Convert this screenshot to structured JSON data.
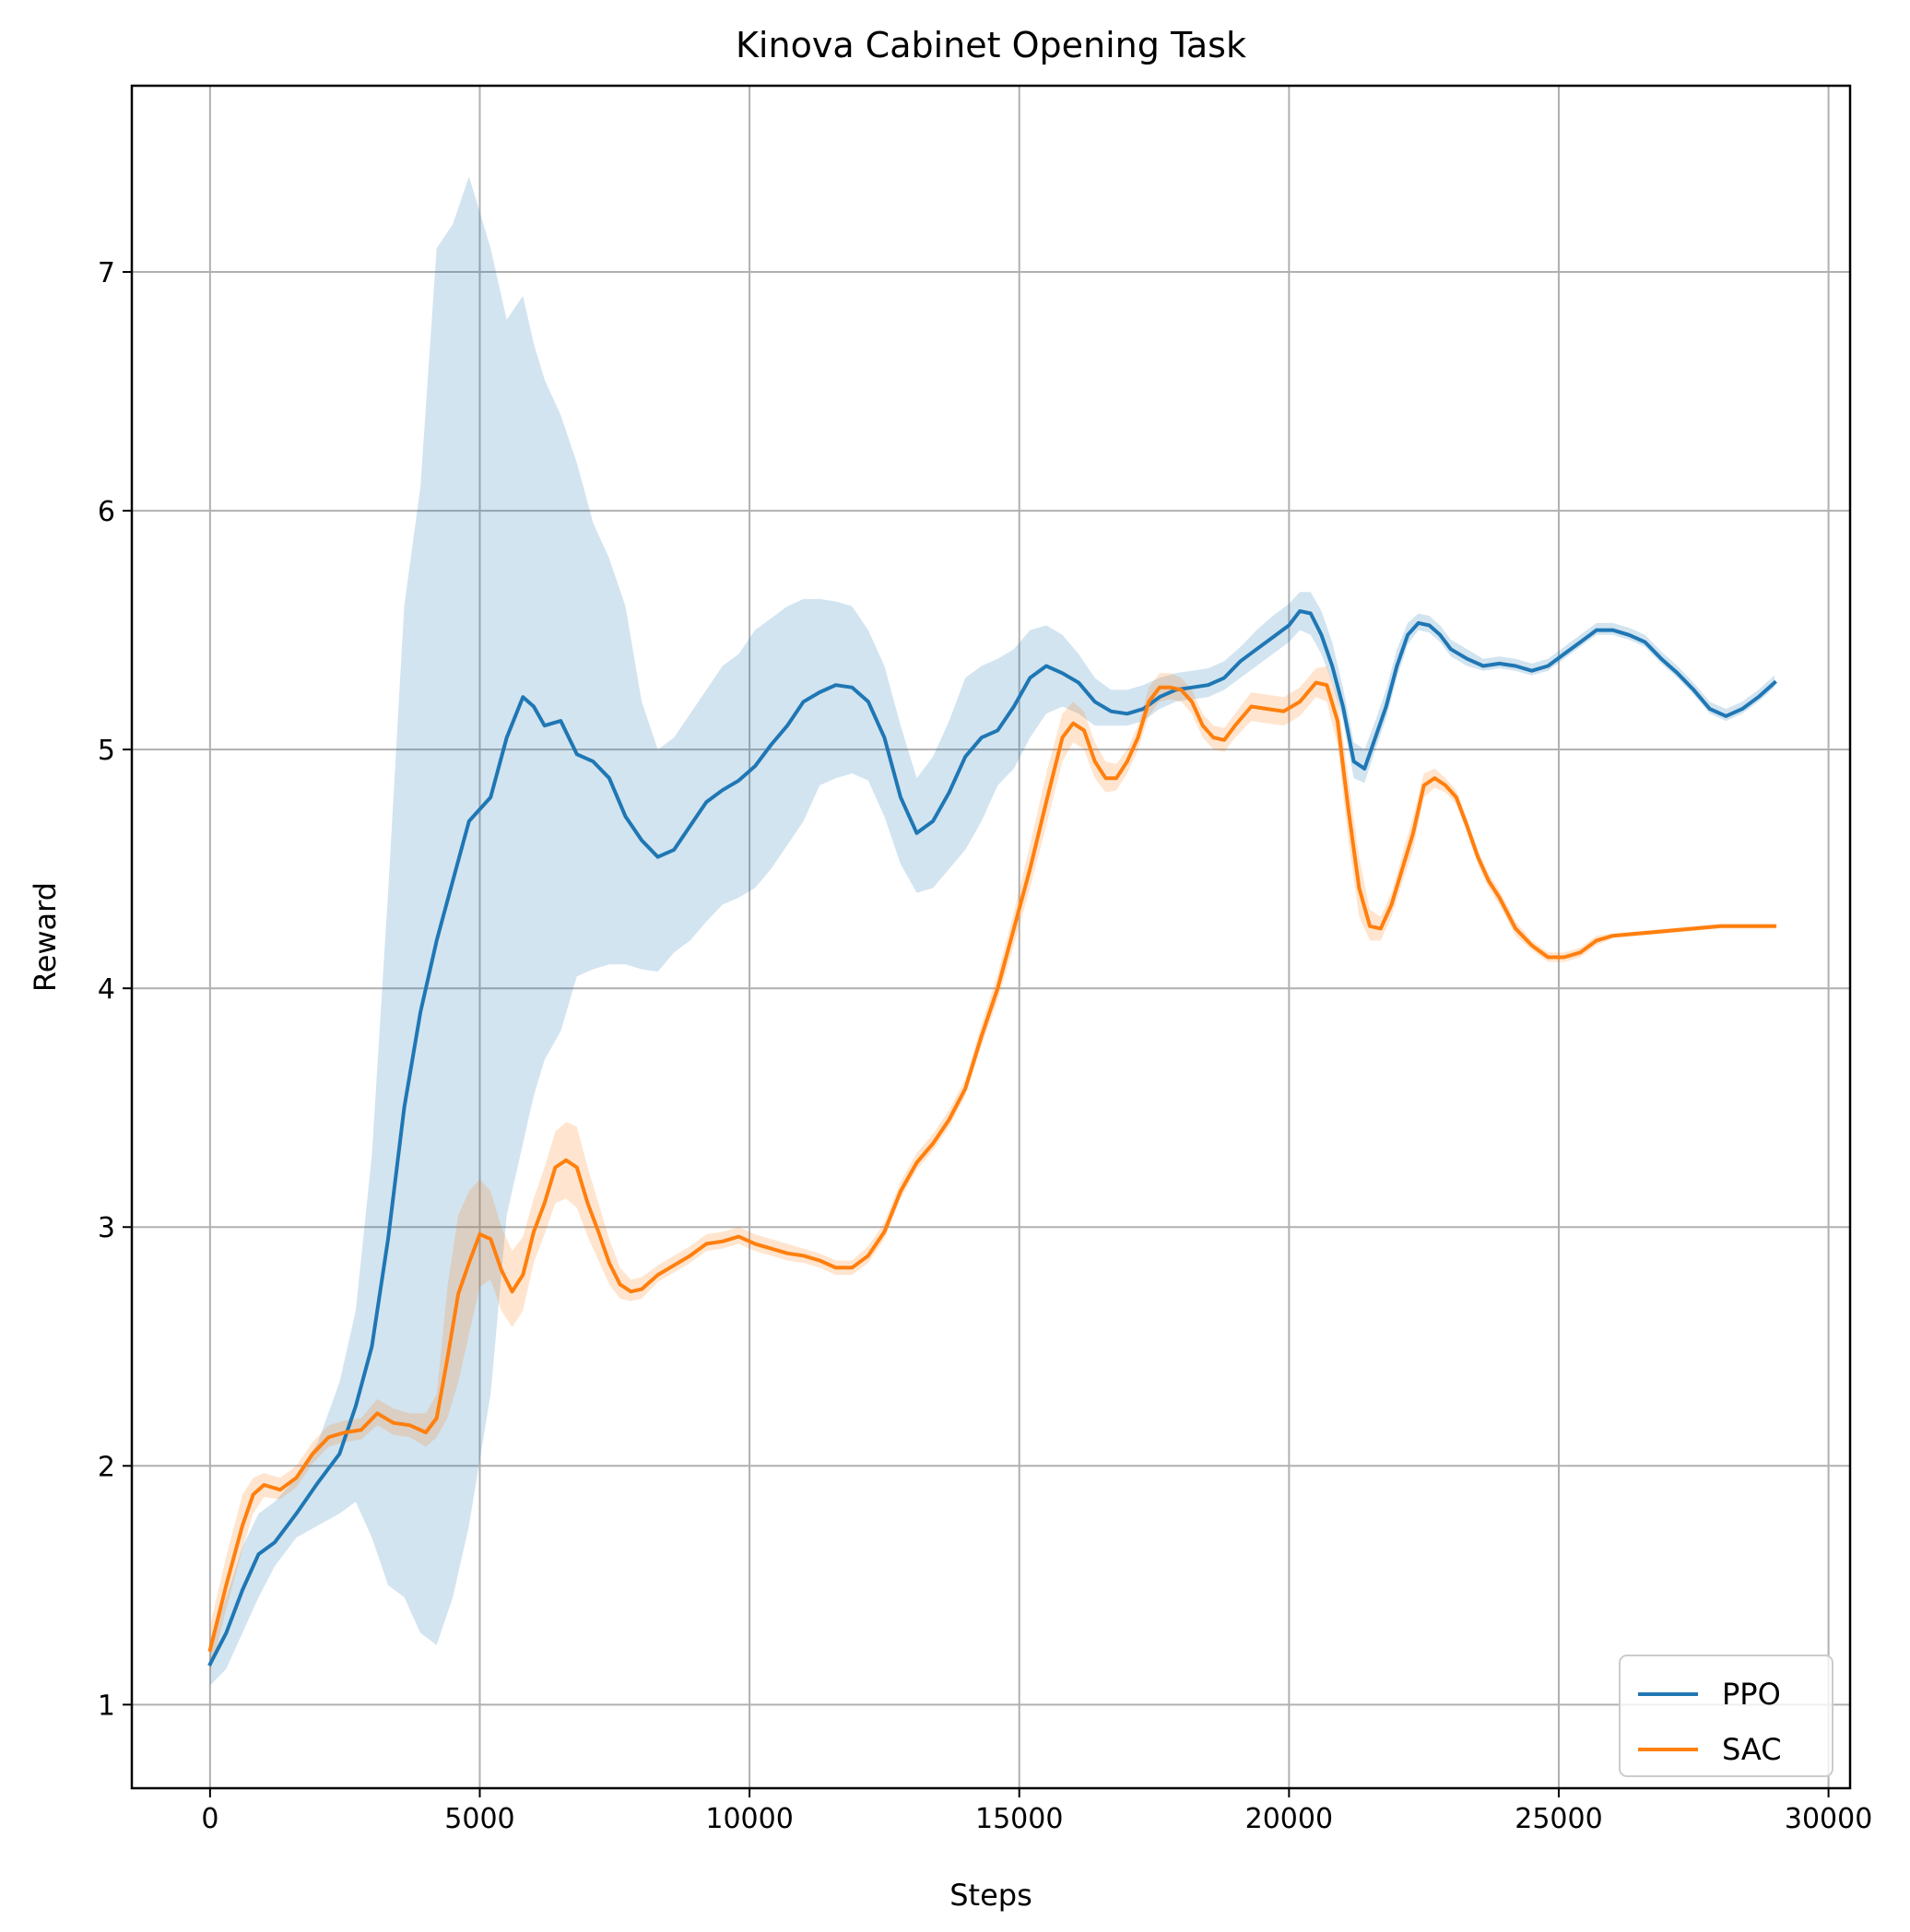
{
  "chart_data": {
    "type": "line",
    "title": "Kinova Cabinet Opening Task",
    "xlabel": "Steps",
    "ylabel": "Reward",
    "xlim": [
      -1450,
      30400
    ],
    "ylim": [
      0.65,
      7.78
    ],
    "xticks": [
      0,
      5000,
      10000,
      15000,
      20000,
      25000,
      30000
    ],
    "xtick_labels": [
      "0",
      "5000",
      "10000",
      "15000",
      "20000",
      "25000",
      "30000"
    ],
    "yticks": [
      1,
      2,
      3,
      4,
      5,
      6,
      7
    ],
    "ytick_labels": [
      "1",
      "2",
      "3",
      "4",
      "5",
      "6",
      "7"
    ],
    "grid": true,
    "legend_position": "lower-right",
    "series": [
      {
        "name": "PPO",
        "color": "#1f77b4",
        "band_opacity": 0.2,
        "x": [
          0,
          300,
          600,
          900,
          1200,
          1600,
          2000,
          2400,
          2700,
          3000,
          3300,
          3600,
          3900,
          4200,
          4500,
          4800,
          5200,
          5500,
          5800,
          6000,
          6200,
          6500,
          6800,
          7100,
          7400,
          7700,
          8000,
          8300,
          8600,
          8900,
          9200,
          9500,
          9800,
          10100,
          10400,
          10700,
          11000,
          11300,
          11600,
          11900,
          12200,
          12500,
          12800,
          13100,
          13400,
          13700,
          14000,
          14300,
          14600,
          14900,
          15200,
          15500,
          15800,
          16100,
          16400,
          16700,
          17000,
          17300,
          17600,
          17900,
          18200,
          18500,
          18800,
          19100,
          19400,
          19700,
          20000,
          20200,
          20400,
          20600,
          20800,
          21000,
          21200,
          21400,
          21600,
          21800,
          22000,
          22200,
          22400,
          22600,
          22800,
          23000,
          23300,
          23600,
          23900,
          24200,
          24500,
          24800,
          25100,
          25400,
          25700,
          26000,
          26300,
          26600,
          26900,
          27200,
          27500,
          27800,
          28100,
          28400,
          28700,
          29000
        ],
        "y": [
          1.17,
          1.3,
          1.48,
          1.63,
          1.68,
          1.8,
          1.93,
          2.05,
          2.25,
          2.5,
          2.95,
          3.5,
          3.9,
          4.2,
          4.45,
          4.7,
          4.8,
          5.05,
          5.22,
          5.18,
          5.1,
          5.12,
          4.98,
          4.95,
          4.88,
          4.72,
          4.62,
          4.55,
          4.58,
          4.68,
          4.78,
          4.83,
          4.87,
          4.93,
          5.02,
          5.1,
          5.2,
          5.24,
          5.27,
          5.26,
          5.2,
          5.05,
          4.8,
          4.65,
          4.7,
          4.82,
          4.97,
          5.05,
          5.08,
          5.18,
          5.3,
          5.35,
          5.32,
          5.28,
          5.2,
          5.16,
          5.15,
          5.17,
          5.22,
          5.25,
          5.26,
          5.27,
          5.3,
          5.37,
          5.42,
          5.47,
          5.52,
          5.58,
          5.57,
          5.48,
          5.35,
          5.18,
          4.95,
          4.92,
          5.05,
          5.18,
          5.35,
          5.48,
          5.53,
          5.52,
          5.48,
          5.42,
          5.38,
          5.35,
          5.36,
          5.35,
          5.33,
          5.35,
          5.4,
          5.45,
          5.5,
          5.5,
          5.48,
          5.45,
          5.38,
          5.32,
          5.25,
          5.17,
          5.14,
          5.17,
          5.22,
          5.28
        ],
        "lower": [
          1.08,
          1.15,
          1.3,
          1.45,
          1.58,
          1.7,
          1.75,
          1.8,
          1.85,
          1.7,
          1.5,
          1.45,
          1.3,
          1.25,
          1.45,
          1.75,
          2.3,
          3.05,
          3.35,
          3.55,
          3.7,
          3.82,
          4.05,
          4.08,
          4.1,
          4.1,
          4.08,
          4.07,
          4.15,
          4.2,
          4.28,
          4.35,
          4.38,
          4.42,
          4.5,
          4.6,
          4.7,
          4.85,
          4.88,
          4.9,
          4.87,
          4.72,
          4.52,
          4.4,
          4.42,
          4.5,
          4.58,
          4.7,
          4.85,
          4.92,
          5.05,
          5.15,
          5.18,
          5.15,
          5.1,
          5.1,
          5.1,
          5.12,
          5.17,
          5.2,
          5.21,
          5.22,
          5.25,
          5.3,
          5.35,
          5.4,
          5.45,
          5.5,
          5.48,
          5.4,
          5.28,
          5.12,
          4.88,
          4.86,
          5.0,
          5.13,
          5.3,
          5.44,
          5.5,
          5.49,
          5.45,
          5.39,
          5.35,
          5.33,
          5.34,
          5.33,
          5.31,
          5.33,
          5.38,
          5.43,
          5.48,
          5.48,
          5.46,
          5.43,
          5.36,
          5.3,
          5.23,
          5.15,
          5.12,
          5.15,
          5.2,
          5.26
        ],
        "upper": [
          1.26,
          1.45,
          1.66,
          1.8,
          1.85,
          1.95,
          2.1,
          2.35,
          2.65,
          3.3,
          4.4,
          5.6,
          6.1,
          7.1,
          7.2,
          7.4,
          7.1,
          6.8,
          6.9,
          6.7,
          6.55,
          6.4,
          6.2,
          5.95,
          5.8,
          5.6,
          5.2,
          5.0,
          5.05,
          5.15,
          5.25,
          5.35,
          5.4,
          5.5,
          5.55,
          5.6,
          5.63,
          5.63,
          5.62,
          5.6,
          5.5,
          5.35,
          5.1,
          4.88,
          4.97,
          5.12,
          5.3,
          5.35,
          5.38,
          5.42,
          5.5,
          5.52,
          5.48,
          5.4,
          5.3,
          5.25,
          5.25,
          5.27,
          5.3,
          5.32,
          5.33,
          5.34,
          5.37,
          5.43,
          5.5,
          5.56,
          5.61,
          5.66,
          5.66,
          5.58,
          5.45,
          5.26,
          5.03,
          5.0,
          5.12,
          5.25,
          5.42,
          5.53,
          5.57,
          5.56,
          5.52,
          5.46,
          5.42,
          5.38,
          5.39,
          5.38,
          5.36,
          5.38,
          5.43,
          5.48,
          5.53,
          5.53,
          5.51,
          5.48,
          5.41,
          5.35,
          5.28,
          5.2,
          5.17,
          5.2,
          5.25,
          5.31
        ]
      },
      {
        "name": "SAC",
        "color": "#ff7f0e",
        "band_opacity": 0.2,
        "x": [
          0,
          300,
          600,
          800,
          1000,
          1300,
          1600,
          1900,
          2200,
          2500,
          2800,
          3100,
          3400,
          3700,
          4000,
          4200,
          4400,
          4600,
          4800,
          5000,
          5200,
          5400,
          5600,
          5800,
          6000,
          6200,
          6400,
          6600,
          6800,
          7000,
          7200,
          7400,
          7600,
          7800,
          8000,
          8300,
          8600,
          8900,
          9200,
          9500,
          9800,
          10100,
          10400,
          10700,
          11000,
          11300,
          11600,
          11900,
          12200,
          12500,
          12800,
          13100,
          13400,
          13700,
          14000,
          14300,
          14600,
          14900,
          15200,
          15500,
          15800,
          16000,
          16200,
          16400,
          16600,
          16800,
          17000,
          17200,
          17400,
          17600,
          17800,
          18000,
          18200,
          18400,
          18600,
          18800,
          19000,
          19300,
          19600,
          19900,
          20200,
          20500,
          20700,
          20900,
          21100,
          21300,
          21500,
          21700,
          21900,
          22100,
          22300,
          22500,
          22700,
          22900,
          23100,
          23300,
          23500,
          23700,
          23900,
          24200,
          24500,
          24800,
          25100,
          25400,
          25700,
          26000,
          26500,
          27000,
          27500,
          28000,
          28500,
          29000
        ],
        "y": [
          1.23,
          1.5,
          1.75,
          1.88,
          1.92,
          1.9,
          1.95,
          2.05,
          2.12,
          2.14,
          2.15,
          2.22,
          2.18,
          2.17,
          2.14,
          2.2,
          2.45,
          2.72,
          2.85,
          2.97,
          2.95,
          2.82,
          2.73,
          2.8,
          2.98,
          3.1,
          3.25,
          3.28,
          3.25,
          3.1,
          2.98,
          2.85,
          2.76,
          2.73,
          2.74,
          2.8,
          2.84,
          2.88,
          2.93,
          2.94,
          2.96,
          2.93,
          2.91,
          2.89,
          2.88,
          2.86,
          2.83,
          2.83,
          2.88,
          2.98,
          3.15,
          3.27,
          3.35,
          3.45,
          3.58,
          3.8,
          4.0,
          4.25,
          4.5,
          4.78,
          5.05,
          5.11,
          5.08,
          4.95,
          4.88,
          4.88,
          4.95,
          5.05,
          5.2,
          5.26,
          5.26,
          5.25,
          5.2,
          5.1,
          5.05,
          5.04,
          5.1,
          5.18,
          5.17,
          5.16,
          5.2,
          5.28,
          5.27,
          5.12,
          4.75,
          4.42,
          4.26,
          4.25,
          4.35,
          4.5,
          4.65,
          4.85,
          4.88,
          4.85,
          4.8,
          4.68,
          4.55,
          4.45,
          4.38,
          4.25,
          4.18,
          4.13,
          4.13,
          4.15,
          4.2,
          4.22,
          4.23,
          4.24,
          4.25,
          4.26,
          4.26,
          4.26
        ],
        "lower": [
          1.13,
          1.4,
          1.65,
          1.8,
          1.87,
          1.86,
          1.91,
          2.01,
          2.08,
          2.1,
          2.11,
          2.17,
          2.13,
          2.12,
          2.08,
          2.12,
          2.2,
          2.35,
          2.55,
          2.75,
          2.78,
          2.65,
          2.58,
          2.65,
          2.85,
          2.97,
          3.1,
          3.12,
          3.08,
          2.96,
          2.86,
          2.76,
          2.7,
          2.69,
          2.7,
          2.77,
          2.81,
          2.85,
          2.9,
          2.91,
          2.93,
          2.9,
          2.88,
          2.86,
          2.85,
          2.83,
          2.8,
          2.8,
          2.85,
          2.95,
          3.12,
          3.24,
          3.32,
          3.42,
          3.55,
          3.76,
          3.95,
          4.18,
          4.42,
          4.68,
          4.95,
          5.03,
          5.0,
          4.88,
          4.82,
          4.83,
          4.9,
          5.0,
          5.14,
          5.2,
          5.21,
          5.2,
          5.15,
          5.05,
          5.0,
          4.99,
          5.05,
          5.12,
          5.11,
          5.1,
          5.14,
          5.22,
          5.2,
          5.02,
          4.62,
          4.3,
          4.2,
          4.2,
          4.3,
          4.44,
          4.58,
          4.8,
          4.84,
          4.82,
          4.77,
          4.65,
          4.52,
          4.42,
          4.35,
          4.22,
          4.16,
          4.11,
          4.11,
          4.13,
          4.18,
          4.21,
          4.22,
          4.23,
          4.24,
          4.25,
          4.25,
          4.25
        ],
        "upper": [
          1.33,
          1.62,
          1.88,
          1.95,
          1.97,
          1.95,
          2.0,
          2.1,
          2.17,
          2.19,
          2.2,
          2.28,
          2.24,
          2.22,
          2.22,
          2.3,
          2.75,
          3.05,
          3.15,
          3.2,
          3.15,
          3.0,
          2.9,
          2.96,
          3.12,
          3.25,
          3.4,
          3.44,
          3.42,
          3.25,
          3.1,
          2.95,
          2.83,
          2.78,
          2.79,
          2.84,
          2.88,
          2.92,
          2.97,
          2.98,
          3.0,
          2.97,
          2.95,
          2.93,
          2.91,
          2.89,
          2.86,
          2.86,
          2.92,
          3.02,
          3.19,
          3.31,
          3.39,
          3.49,
          3.62,
          3.85,
          4.06,
          4.32,
          4.6,
          4.9,
          5.15,
          5.2,
          5.16,
          5.03,
          4.95,
          4.94,
          5.0,
          5.1,
          5.26,
          5.32,
          5.32,
          5.3,
          5.25,
          5.15,
          5.1,
          5.09,
          5.15,
          5.24,
          5.23,
          5.22,
          5.26,
          5.34,
          5.35,
          5.22,
          4.88,
          4.55,
          4.33,
          4.3,
          4.4,
          4.56,
          4.72,
          4.9,
          4.92,
          4.88,
          4.83,
          4.71,
          4.58,
          4.48,
          4.41,
          4.28,
          4.2,
          4.15,
          4.15,
          4.17,
          4.22,
          4.23,
          4.24,
          4.25,
          4.26,
          4.27,
          4.27,
          4.27
        ]
      }
    ]
  }
}
